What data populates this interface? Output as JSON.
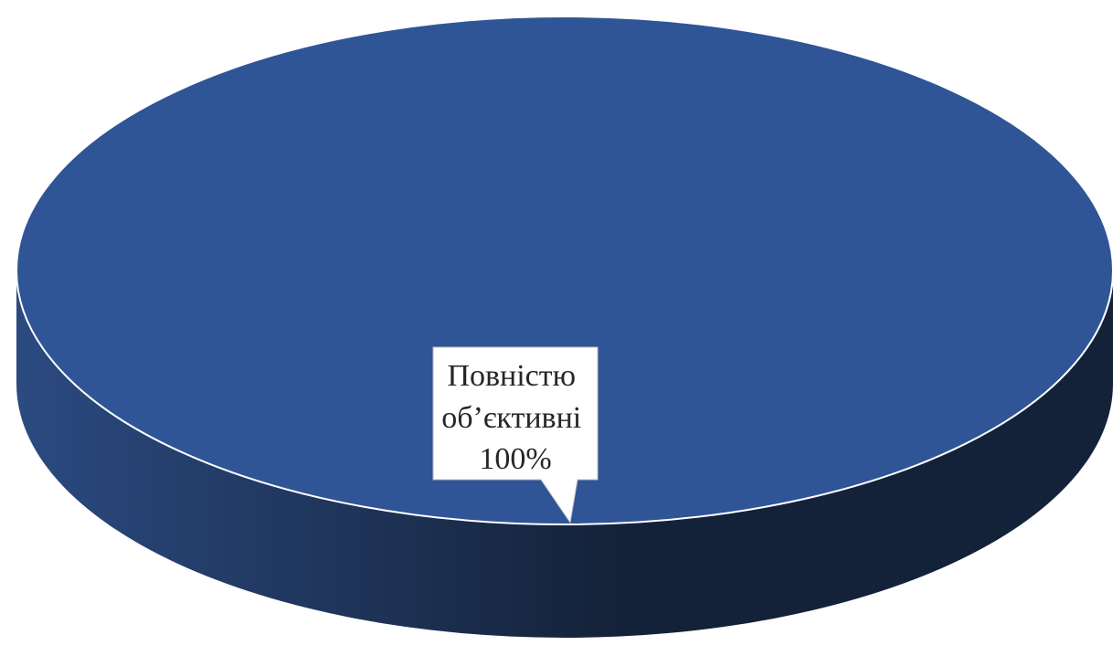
{
  "chart_data": {
    "type": "pie",
    "style": "3d",
    "slices": [
      {
        "label_lines": [
          "Повністю",
          "об’єктивні"
        ],
        "percent_label": "100%",
        "value": 100,
        "color": "#2f5597"
      }
    ],
    "colors": {
      "top": "#2f5597",
      "side_light": "#2b4a80",
      "side_dark": "#142239",
      "rim": "#ffffff",
      "callout_fill": "#ffffff",
      "callout_stroke": "#bfbfbf"
    }
  }
}
